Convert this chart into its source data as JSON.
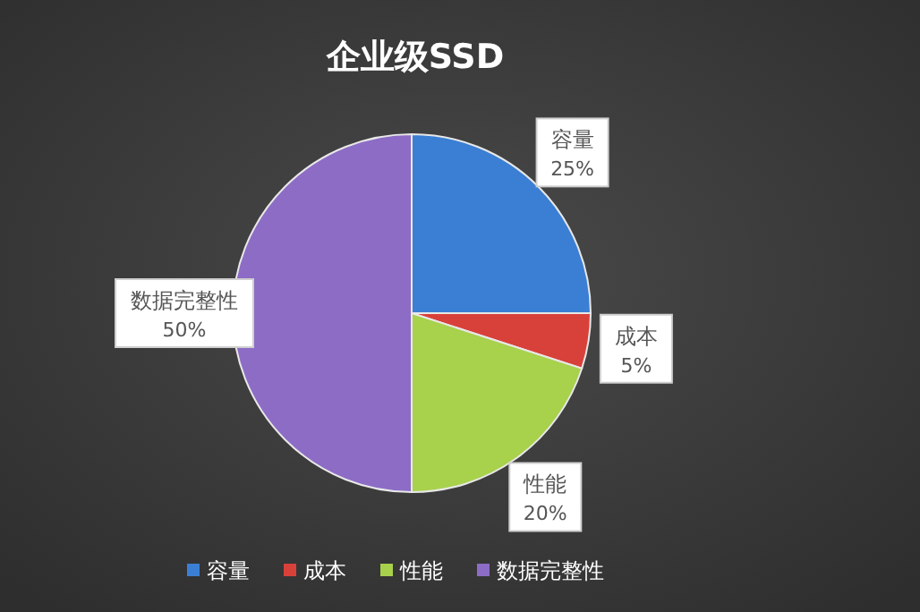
{
  "chart_data": {
    "type": "pie",
    "title": "企业级SSD",
    "categories": [
      "容量",
      "成本",
      "性能",
      "数据完整性"
    ],
    "values": [
      25,
      5,
      20,
      50
    ],
    "colors": [
      "#3b7fd4",
      "#d8413a",
      "#a8d14c",
      "#8d6cc6"
    ],
    "value_labels": [
      "25%",
      "5%",
      "20%",
      "50%"
    ],
    "legend": "bottom"
  }
}
